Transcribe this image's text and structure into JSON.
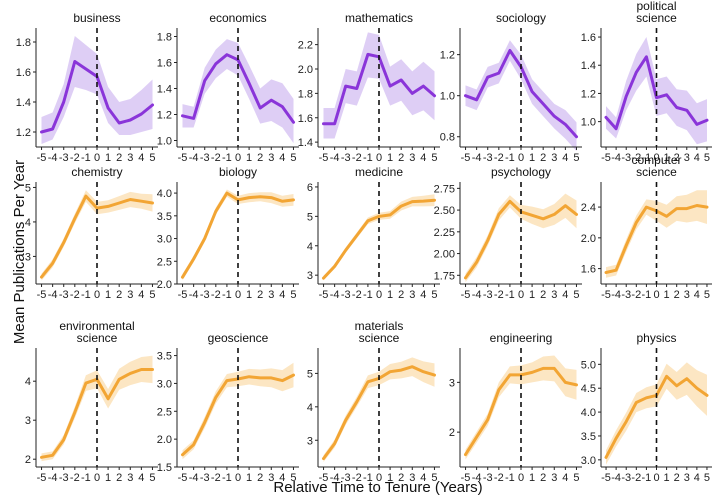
{
  "figure": {
    "xlabel": "Relative Time to Tenure (Years)",
    "ylabel": "Mean Publications Per Year"
  },
  "colors": {
    "purple_line": "#8a35d9",
    "purple_band": "#d8c6f3",
    "orange_line": "#f2a534",
    "orange_band": "#fbe2b8"
  },
  "chart_data": [
    {
      "type": "line",
      "title": [
        "business"
      ],
      "colorKey": "purple",
      "x": [
        -5,
        -4,
        -3,
        -2,
        -1,
        0,
        1,
        2,
        3,
        4,
        5
      ],
      "values": [
        1.2,
        1.22,
        1.4,
        1.67,
        1.62,
        1.57,
        1.36,
        1.26,
        1.28,
        1.32,
        1.38
      ],
      "lower": [
        1.12,
        1.15,
        1.3,
        1.5,
        1.48,
        1.45,
        1.26,
        1.18,
        1.18,
        1.2,
        1.22
      ],
      "upper": [
        1.3,
        1.33,
        1.52,
        1.84,
        1.78,
        1.72,
        1.5,
        1.4,
        1.42,
        1.48,
        1.55
      ],
      "ylim": [
        1.1,
        1.88
      ],
      "yticks": [
        1.2,
        1.4,
        1.6,
        1.8
      ],
      "yticklabels": [
        "1.2",
        "1.4",
        "1.6",
        "1.8"
      ],
      "tenure_x": 0
    },
    {
      "type": "line",
      "title": [
        "economics"
      ],
      "colorKey": "purple",
      "x": [
        -5,
        -4,
        -3,
        -2,
        -1,
        0,
        1,
        2,
        3,
        4,
        5
      ],
      "values": [
        1.19,
        1.17,
        1.46,
        1.59,
        1.66,
        1.62,
        1.44,
        1.25,
        1.31,
        1.26,
        1.14
      ],
      "lower": [
        1.1,
        1.1,
        1.36,
        1.48,
        1.55,
        1.5,
        1.32,
        1.13,
        1.15,
        1.1,
        0.98
      ],
      "upper": [
        1.28,
        1.26,
        1.56,
        1.7,
        1.78,
        1.75,
        1.58,
        1.4,
        1.47,
        1.44,
        1.32
      ],
      "ylim": [
        0.95,
        1.85
      ],
      "yticks": [
        1.0,
        1.2,
        1.4,
        1.6,
        1.8
      ],
      "yticklabels": [
        "1.0",
        "1.2",
        "1.4",
        "1.6",
        "1.8"
      ],
      "tenure_x": 0
    },
    {
      "type": "line",
      "title": [
        "mathematics"
      ],
      "colorKey": "purple",
      "x": [
        -5,
        -4,
        -3,
        -2,
        -1,
        0,
        1,
        2,
        3,
        4,
        5
      ],
      "values": [
        1.55,
        1.55,
        1.86,
        1.84,
        2.12,
        2.1,
        1.86,
        1.91,
        1.8,
        1.86,
        1.78
      ],
      "lower": [
        1.43,
        1.43,
        1.72,
        1.7,
        1.93,
        1.92,
        1.7,
        1.74,
        1.62,
        1.66,
        1.58
      ],
      "upper": [
        1.68,
        1.68,
        2.0,
        1.98,
        2.3,
        2.28,
        2.02,
        2.08,
        1.98,
        2.06,
        1.98
      ],
      "ylim": [
        1.36,
        2.32
      ],
      "yticks": [
        1.4,
        1.6,
        1.8,
        2.0,
        2.2
      ],
      "yticklabels": [
        "1.4",
        "1.6",
        "1.8",
        "2.0",
        "2.2"
      ],
      "tenure_x": 0
    },
    {
      "type": "line",
      "title": [
        "sociology"
      ],
      "colorKey": "purple",
      "x": [
        -5,
        -4,
        -3,
        -2,
        -1,
        0,
        1,
        2,
        3,
        4,
        5
      ],
      "values": [
        1.0,
        0.98,
        1.09,
        1.11,
        1.22,
        1.14,
        1.02,
        0.96,
        0.9,
        0.86,
        0.8
      ],
      "lower": [
        0.95,
        0.93,
        1.04,
        1.06,
        1.17,
        1.08,
        0.96,
        0.9,
        0.84,
        0.79,
        0.73
      ],
      "upper": [
        1.05,
        1.03,
        1.14,
        1.16,
        1.27,
        1.2,
        1.08,
        1.02,
        0.96,
        0.93,
        0.87
      ],
      "ylim": [
        0.75,
        1.32
      ],
      "yticks": [
        0.8,
        1.0,
        1.2
      ],
      "yticklabels": [
        "0.8",
        "1.0",
        "1.2"
      ],
      "tenure_x": 0
    },
    {
      "type": "line",
      "title": [
        "political",
        "science"
      ],
      "colorKey": "purple",
      "x": [
        -5,
        -4,
        -3,
        -2,
        -1,
        0,
        1,
        2,
        3,
        4,
        5
      ],
      "values": [
        1.03,
        0.95,
        1.18,
        1.35,
        1.46,
        1.17,
        1.19,
        1.1,
        1.08,
        0.98,
        1.01
      ],
      "lower": [
        0.95,
        0.88,
        1.08,
        1.22,
        1.32,
        1.04,
        1.06,
        0.97,
        0.94,
        0.84,
        0.86
      ],
      "upper": [
        1.11,
        1.03,
        1.29,
        1.48,
        1.6,
        1.3,
        1.32,
        1.23,
        1.22,
        1.13,
        1.16
      ],
      "ylim": [
        0.82,
        1.65
      ],
      "yticks": [
        1.0,
        1.2,
        1.4,
        1.6
      ],
      "yticklabels": [
        "1.0",
        "1.2",
        "1.4",
        "1.6"
      ],
      "tenure_x": 0
    },
    {
      "type": "line",
      "title": [
        "chemistry"
      ],
      "colorKey": "orange",
      "x": [
        -5,
        -4,
        -3,
        -2,
        -1,
        0,
        1,
        2,
        3,
        4,
        5
      ],
      "values": [
        2.4,
        2.8,
        3.4,
        4.1,
        4.75,
        4.4,
        4.45,
        4.55,
        4.65,
        4.6,
        4.55
      ],
      "lower": [
        2.3,
        2.68,
        3.28,
        3.96,
        4.58,
        4.22,
        4.27,
        4.35,
        4.43,
        4.38,
        4.3
      ],
      "upper": [
        2.5,
        2.92,
        3.52,
        4.24,
        4.92,
        4.58,
        4.63,
        4.75,
        4.87,
        4.82,
        4.8
      ],
      "ylim": [
        2.2,
        5.1
      ],
      "yticks": [
        3,
        4,
        5
      ],
      "yticklabels": [
        "3",
        "4",
        "5"
      ],
      "tenure_x": 0
    },
    {
      "type": "line",
      "title": [
        "biology"
      ],
      "colorKey": "orange",
      "x": [
        -5,
        -4,
        -3,
        -2,
        -1,
        0,
        1,
        2,
        3,
        4,
        5
      ],
      "values": [
        2.15,
        2.55,
        3.0,
        3.6,
        4.0,
        3.85,
        3.9,
        3.92,
        3.9,
        3.82,
        3.85
      ],
      "lower": [
        2.08,
        2.48,
        2.93,
        3.52,
        3.92,
        3.76,
        3.8,
        3.82,
        3.78,
        3.7,
        3.72
      ],
      "upper": [
        2.22,
        2.62,
        3.07,
        3.68,
        4.08,
        3.94,
        4.0,
        4.02,
        4.02,
        3.94,
        3.98
      ],
      "ylim": [
        2.0,
        4.2
      ],
      "yticks": [
        2.0,
        2.5,
        3.0,
        3.5,
        4.0
      ],
      "yticklabels": [
        "2.0",
        "2.5",
        "3.0",
        "3.5",
        "4.0"
      ],
      "tenure_x": 0
    },
    {
      "type": "line",
      "title": [
        "medicine"
      ],
      "colorKey": "orange",
      "x": [
        -5,
        -4,
        -3,
        -2,
        -1,
        0,
        1,
        2,
        3,
        4,
        5
      ],
      "values": [
        2.9,
        3.3,
        3.85,
        4.35,
        4.85,
        5.0,
        5.05,
        5.35,
        5.5,
        5.52,
        5.55
      ],
      "lower": [
        2.82,
        3.22,
        3.76,
        4.25,
        4.74,
        4.88,
        4.92,
        5.2,
        5.34,
        5.34,
        5.35
      ],
      "upper": [
        2.98,
        3.38,
        3.94,
        4.45,
        4.96,
        5.12,
        5.18,
        5.5,
        5.66,
        5.7,
        5.75
      ],
      "ylim": [
        2.7,
        6.1
      ],
      "yticks": [
        3,
        4,
        5,
        6
      ],
      "yticklabels": [
        "3",
        "4",
        "5",
        "6"
      ],
      "tenure_x": 0
    },
    {
      "type": "line",
      "title": [
        "psychology"
      ],
      "colorKey": "orange",
      "x": [
        -5,
        -4,
        -3,
        -2,
        -1,
        0,
        1,
        2,
        3,
        4,
        5
      ],
      "values": [
        1.72,
        1.9,
        2.15,
        2.45,
        2.6,
        2.48,
        2.44,
        2.4,
        2.45,
        2.55,
        2.45
      ],
      "lower": [
        1.67,
        1.84,
        2.09,
        2.38,
        2.53,
        2.4,
        2.34,
        2.29,
        2.33,
        2.41,
        2.29
      ],
      "upper": [
        1.77,
        1.96,
        2.21,
        2.52,
        2.67,
        2.56,
        2.54,
        2.51,
        2.57,
        2.69,
        2.61
      ],
      "ylim": [
        1.65,
        2.8
      ],
      "yticks": [
        1.75,
        2.0,
        2.25,
        2.5,
        2.75
      ],
      "yticklabels": [
        "1.75",
        "2.00",
        "2.25",
        "2.50",
        "2.75"
      ],
      "tenure_x": 0
    },
    {
      "type": "line",
      "title": [
        "computer",
        "science"
      ],
      "colorKey": "orange",
      "x": [
        -5,
        -4,
        -3,
        -2,
        -1,
        0,
        1,
        2,
        3,
        4,
        5
      ],
      "values": [
        1.55,
        1.58,
        1.9,
        2.2,
        2.4,
        2.35,
        2.28,
        2.38,
        2.38,
        2.42,
        2.4
      ],
      "lower": [
        1.48,
        1.51,
        1.82,
        2.11,
        2.3,
        2.22,
        2.13,
        2.22,
        2.2,
        2.22,
        2.18
      ],
      "upper": [
        1.62,
        1.65,
        1.98,
        2.29,
        2.5,
        2.48,
        2.43,
        2.54,
        2.56,
        2.62,
        2.62
      ],
      "ylim": [
        1.4,
        2.7
      ],
      "yticks": [
        1.6,
        2.0,
        2.4
      ],
      "yticklabels": [
        "1.6",
        "2.0",
        "2.4"
      ],
      "tenure_x": 0
    },
    {
      "type": "line",
      "title": [
        "environmental",
        "science"
      ],
      "colorKey": "orange",
      "x": [
        -5,
        -4,
        -3,
        -2,
        -1,
        0,
        1,
        2,
        3,
        4,
        5
      ],
      "values": [
        2.05,
        2.1,
        2.5,
        3.2,
        3.95,
        4.05,
        3.55,
        4.05,
        4.2,
        4.3,
        4.3
      ],
      "lower": [
        1.95,
        2.0,
        2.38,
        3.05,
        3.75,
        3.82,
        3.3,
        3.78,
        3.9,
        3.98,
        3.95
      ],
      "upper": [
        2.15,
        2.2,
        2.62,
        3.35,
        4.15,
        4.28,
        3.8,
        4.32,
        4.5,
        4.62,
        4.65
      ],
      "ylim": [
        1.8,
        4.8
      ],
      "yticks": [
        2,
        3,
        4
      ],
      "yticklabels": [
        "2",
        "3",
        "4"
      ],
      "tenure_x": 0
    },
    {
      "type": "line",
      "title": [
        "geoscience"
      ],
      "colorKey": "orange",
      "x": [
        -5,
        -4,
        -3,
        -2,
        -1,
        0,
        1,
        2,
        3,
        4,
        5
      ],
      "values": [
        1.72,
        1.9,
        2.3,
        2.75,
        3.05,
        3.08,
        3.12,
        3.1,
        3.1,
        3.05,
        3.15
      ],
      "lower": [
        1.64,
        1.82,
        2.2,
        2.64,
        2.93,
        2.95,
        2.98,
        2.95,
        2.93,
        2.86,
        2.93
      ],
      "upper": [
        1.8,
        1.98,
        2.4,
        2.86,
        3.17,
        3.21,
        3.26,
        3.25,
        3.27,
        3.24,
        3.37
      ],
      "ylim": [
        1.5,
        3.6
      ],
      "yticks": [
        1.5,
        2.0,
        2.5,
        3.0,
        3.5
      ],
      "yticklabels": [
        "1.5",
        "2.0",
        "2.5",
        "3.0",
        "3.5"
      ],
      "tenure_x": 0
    },
    {
      "type": "line",
      "title": [
        "materials",
        "science"
      ],
      "colorKey": "orange",
      "x": [
        -5,
        -4,
        -3,
        -2,
        -1,
        0,
        1,
        2,
        3,
        4,
        5
      ],
      "values": [
        2.45,
        2.9,
        3.6,
        4.15,
        4.75,
        4.85,
        5.05,
        5.1,
        5.2,
        5.05,
        4.95
      ],
      "lower": [
        2.35,
        2.78,
        3.46,
        4.0,
        4.56,
        4.65,
        4.82,
        4.85,
        4.92,
        4.74,
        4.6
      ],
      "upper": [
        2.55,
        3.02,
        3.74,
        4.3,
        4.94,
        5.05,
        5.28,
        5.35,
        5.48,
        5.36,
        5.3
      ],
      "ylim": [
        2.2,
        5.7
      ],
      "yticks": [
        3,
        4,
        5
      ],
      "yticklabels": [
        "3",
        "4",
        "5"
      ],
      "tenure_x": 0
    },
    {
      "type": "line",
      "title": [
        "engineering"
      ],
      "colorKey": "orange",
      "x": [
        -5,
        -4,
        -3,
        -2,
        -1,
        0,
        1,
        2,
        3,
        4,
        5
      ],
      "values": [
        1.55,
        1.9,
        2.25,
        2.85,
        3.15,
        3.15,
        3.2,
        3.28,
        3.28,
        3.0,
        2.95
      ],
      "lower": [
        1.45,
        1.79,
        2.13,
        2.7,
        2.98,
        2.96,
        3.0,
        3.04,
        3.02,
        2.72,
        2.65
      ],
      "upper": [
        1.65,
        2.01,
        2.37,
        3.0,
        3.32,
        3.34,
        3.4,
        3.52,
        3.54,
        3.28,
        3.25
      ],
      "ylim": [
        1.3,
        3.65
      ],
      "yticks": [
        2,
        3
      ],
      "yticklabels": [
        "2",
        "3"
      ],
      "tenure_x": 0
    },
    {
      "type": "line",
      "title": [
        "physics"
      ],
      "colorKey": "orange",
      "x": [
        -5,
        -4,
        -3,
        -2,
        -1,
        0,
        1,
        2,
        3,
        4,
        5
      ],
      "values": [
        3.05,
        3.45,
        3.8,
        4.2,
        4.3,
        4.35,
        4.75,
        4.55,
        4.7,
        4.5,
        4.35
      ],
      "lower": [
        2.9,
        3.28,
        3.61,
        4.0,
        4.08,
        4.12,
        4.49,
        4.26,
        4.36,
        4.12,
        3.92
      ],
      "upper": [
        3.2,
        3.62,
        3.99,
        4.4,
        4.52,
        4.58,
        5.01,
        4.84,
        5.04,
        4.88,
        4.78
      ],
      "ylim": [
        2.85,
        5.3
      ],
      "yticks": [
        3.0,
        3.5,
        4.0,
        4.5,
        5.0
      ],
      "yticklabels": [
        "3.0",
        "3.5",
        "4.0",
        "4.5",
        "5.0"
      ],
      "tenure_x": 0
    }
  ]
}
